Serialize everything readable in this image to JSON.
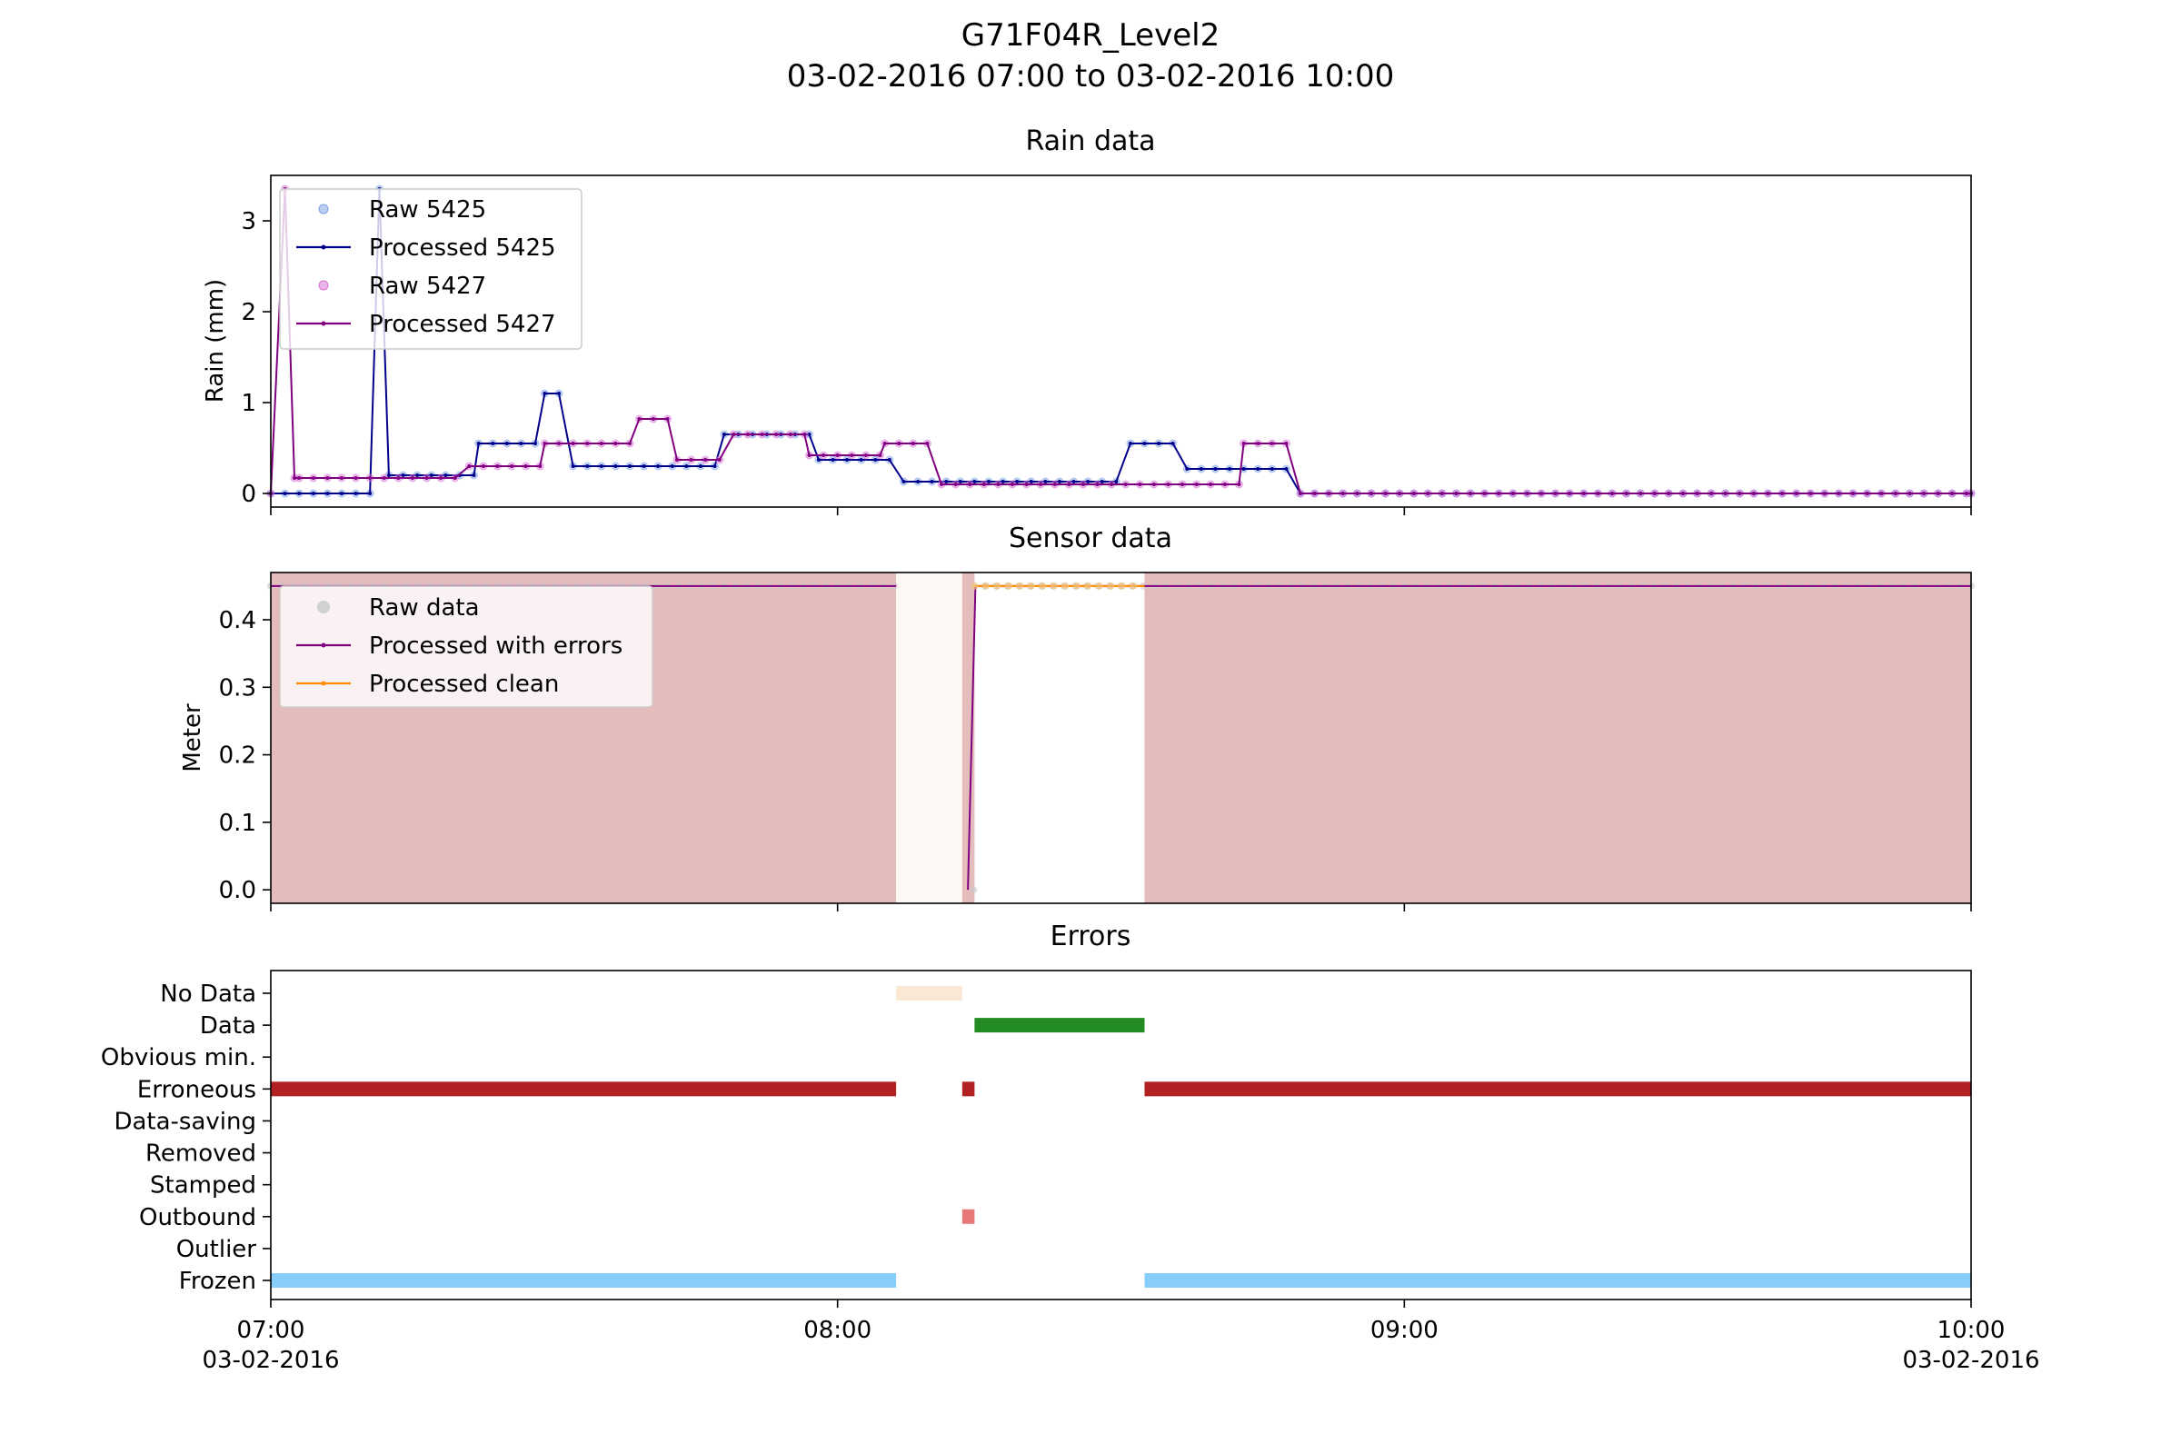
{
  "figure": {
    "title_line1": "G71F04R_Level2",
    "title_line2": "03-02-2016 07:00 to 03-02-2016 10:00"
  },
  "x_axis": {
    "range_minutes": [
      0,
      180
    ],
    "ticks": [
      {
        "minute": 0,
        "label": "07:00",
        "sublabel": "03-02-2016"
      },
      {
        "minute": 60,
        "label": "08:00",
        "sublabel": ""
      },
      {
        "minute": 120,
        "label": "09:00",
        "sublabel": ""
      },
      {
        "minute": 180,
        "label": "10:00",
        "sublabel": "03-02-2016"
      }
    ]
  },
  "chart_data": [
    {
      "type": "line",
      "title": "Rain data",
      "ylabel": "Rain (mm)",
      "ylim": [
        -0.15,
        3.5
      ],
      "yticks": [
        0,
        1,
        2,
        3
      ],
      "legend_position": "top-left",
      "series": [
        {
          "name": "Raw 5425",
          "kind": "scatter",
          "color": "#7aa0e8",
          "segments": [
            [
              0,
              11,
              0
            ],
            [
              11,
              12,
              3.35
            ],
            [
              12,
              81,
              null
            ]
          ],
          "use": "raw_5425"
        },
        {
          "name": "Processed 5425",
          "kind": "line",
          "color": "#00008b",
          "use": "proc_5425"
        },
        {
          "name": "Raw 5427",
          "kind": "scatter",
          "color": "#d870d8",
          "use": "raw_5427"
        },
        {
          "name": "Processed 5427",
          "kind": "line",
          "color": "#800080",
          "use": "proc_5427"
        }
      ],
      "steps_5425": [
        [
          0,
          11,
          0
        ],
        [
          11.5,
          12.5,
          3.35
        ],
        [
          12.5,
          22,
          0.2
        ],
        [
          22,
          29,
          0.55
        ],
        [
          29,
          32,
          1.1
        ],
        [
          32,
          48,
          0.3
        ],
        [
          48,
          58,
          0.65
        ],
        [
          58,
          67,
          0.37
        ],
        [
          67,
          70,
          0.13
        ],
        [
          70,
          91,
          0.13
        ],
        [
          91,
          97,
          0.55
        ],
        [
          97,
          103,
          0.27
        ],
        [
          103,
          109,
          0.27
        ],
        [
          109,
          180,
          0
        ]
      ],
      "steps_5427": [
        [
          0,
          1,
          0
        ],
        [
          1.5,
          2.5,
          3.35
        ],
        [
          2.5,
          3,
          0.17
        ],
        [
          3,
          21,
          0.17
        ],
        [
          21,
          29,
          0.3
        ],
        [
          29,
          39,
          0.55
        ],
        [
          39,
          43,
          0.82
        ],
        [
          43,
          49,
          0.37
        ],
        [
          49,
          57,
          0.65
        ],
        [
          57,
          65,
          0.42
        ],
        [
          65,
          71,
          0.55
        ],
        [
          71,
          103,
          0.1
        ],
        [
          103,
          109,
          0.55
        ],
        [
          109,
          180,
          0
        ]
      ]
    },
    {
      "type": "line",
      "title": "Sensor data",
      "ylabel": "Meter",
      "ylim": [
        -0.02,
        0.47
      ],
      "yticks": [
        0.0,
        0.1,
        0.2,
        0.3,
        0.4
      ],
      "legend_position": "top-left",
      "series": [
        {
          "name": "Raw data",
          "kind": "scatter",
          "color": "#c8c8c8"
        },
        {
          "name": "Processed with errors",
          "kind": "line",
          "color": "#800080"
        },
        {
          "name": "Processed clean",
          "kind": "line",
          "color": "#ff8c00"
        }
      ],
      "shaded_regions": [
        {
          "from": 0,
          "to": 66.2,
          "color": "#e5bcbc"
        },
        {
          "from": 66.2,
          "to": 73.2,
          "color": "#fdf8f3"
        },
        {
          "from": 73.2,
          "to": 74.5,
          "color": "#e5bcbc"
        },
        {
          "from": 92.5,
          "to": 180,
          "color": "#e5bcbc"
        }
      ],
      "value_constant": 0.45,
      "dip_minute": 74.0,
      "dip_value": 0.0,
      "gap": [
        66.2,
        73.8
      ],
      "clean_range": [
        74.5,
        92.5
      ]
    },
    {
      "type": "bar",
      "title": "Errors",
      "categories": [
        "No Data",
        "Data",
        "Obvious min.",
        "Erroneous",
        "Data-saving",
        "Removed",
        "Stamped",
        "Outbound",
        "Outlier",
        "Frozen"
      ],
      "intervals": [
        {
          "category": "No Data",
          "from": 66.2,
          "to": 73.2,
          "color": "#fae8d4"
        },
        {
          "category": "Data",
          "from": 74.5,
          "to": 92.5,
          "color": "#228b22"
        },
        {
          "category": "Erroneous",
          "from": 0,
          "to": 66.2,
          "color": "#b22222"
        },
        {
          "category": "Erroneous",
          "from": 73.2,
          "to": 74.5,
          "color": "#b22222"
        },
        {
          "category": "Erroneous",
          "from": 92.5,
          "to": 180,
          "color": "#b22222"
        },
        {
          "category": "Outbound",
          "from": 73.2,
          "to": 74.5,
          "color": "#e87878"
        },
        {
          "category": "Frozen",
          "from": 0,
          "to": 66.2,
          "color": "#87cefa"
        },
        {
          "category": "Frozen",
          "from": 92.5,
          "to": 180,
          "color": "#87cefa"
        }
      ]
    }
  ]
}
